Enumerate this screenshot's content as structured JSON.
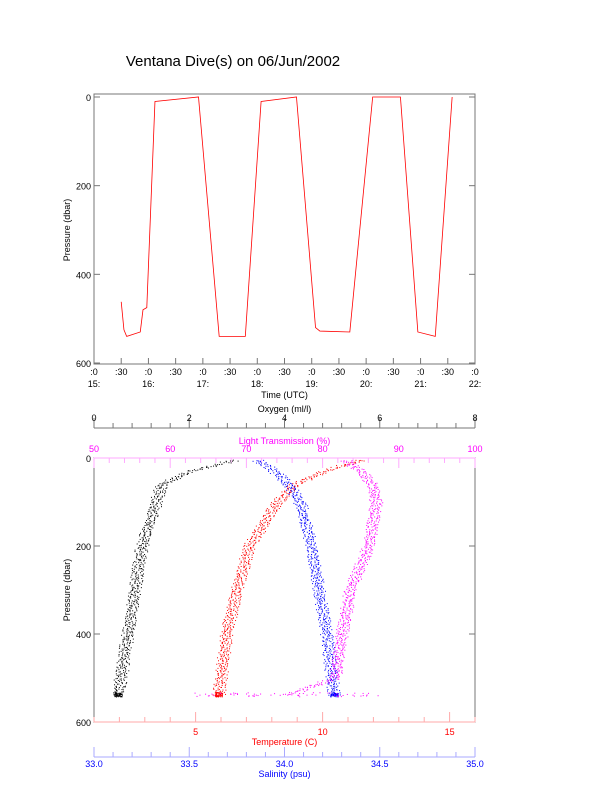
{
  "title": "Ventana Dive(s) on 06/Jun/2002",
  "colors": {
    "oxygen": "#000000",
    "temperature": "#ff0000",
    "salinity": "#0000ff",
    "light": "#ff00ff",
    "trace": "#ff0000",
    "axis": "#000000"
  },
  "chart_data": [
    {
      "type": "line",
      "name": "pressure-vs-time",
      "xlabel": "Time (UTC)",
      "ylabel": "Pressure (dbar)",
      "xlim": [
        15,
        22
      ],
      "ylim": [
        0,
        600
      ],
      "y_inverted": true,
      "x_tick_labels_top": [
        ":0",
        ":30",
        ":0",
        ":30",
        ":0",
        ":30",
        ":0",
        ":30",
        ":0",
        ":30",
        ":0",
        ":30",
        ":0",
        ":30",
        ":0"
      ],
      "x_tick_labels_bottom": [
        "15:",
        "",
        "16:",
        "",
        "17:",
        "",
        "18:",
        "",
        "19:",
        "",
        "20:",
        "",
        "21:",
        "",
        "22:"
      ],
      "y_ticks": [
        0,
        200,
        400,
        600
      ],
      "series": [
        {
          "name": "Pressure",
          "x": [
            15.5,
            15.55,
            15.6,
            15.85,
            15.9,
            15.97,
            16.12,
            16.92,
            17.3,
            17.78,
            18.07,
            18.72,
            19.07,
            19.15,
            19.7,
            20.12,
            20.63,
            20.95,
            21.27,
            21.58
          ],
          "y": [
            462,
            525,
            540,
            530,
            480,
            475,
            10,
            0,
            540,
            540,
            10,
            0,
            520,
            528,
            530,
            0,
            0,
            530,
            540,
            0
          ]
        }
      ]
    },
    {
      "type": "scatter",
      "name": "profiles",
      "ylabel": "Pressure (dbar)",
      "ylim": [
        0,
        600
      ],
      "y_inverted": true,
      "y_ticks": [
        0,
        200,
        400,
        600
      ],
      "axes": {
        "oxygen": {
          "label": "Oxygen (ml/l)",
          "range": [
            0,
            8
          ],
          "ticks": [
            0,
            2,
            4,
            6,
            8
          ]
        },
        "light": {
          "label": "Light Transmission (%)",
          "range": [
            50,
            100
          ],
          "ticks": [
            50,
            60,
            70,
            80,
            90,
            100
          ]
        },
        "temperature": {
          "label": "Temperature (C)",
          "range": [
            1,
            16
          ],
          "ticks": [
            5,
            10,
            15
          ]
        },
        "salinity": {
          "label": "Salinity (psu)",
          "range": [
            33.0,
            35.0
          ],
          "ticks": [
            "33.0",
            "33.5",
            "34.0",
            "34.5",
            "35.0"
          ]
        }
      },
      "series": [
        {
          "name": "Oxygen",
          "axis": "oxygen",
          "p": [
            5,
            30,
            60,
            100,
            200,
            300,
            400,
            540
          ],
          "v": [
            2.9,
            2.0,
            1.4,
            1.3,
            1.0,
            0.85,
            0.7,
            0.5
          ]
        },
        {
          "name": "Temperature",
          "axis": "temperature",
          "p": [
            5,
            30,
            60,
            100,
            200,
            300,
            400,
            540
          ],
          "v": [
            11.5,
            10.0,
            8.9,
            8.2,
            7.1,
            6.6,
            6.2,
            5.9
          ]
        },
        {
          "name": "Salinity",
          "axis": "salinity",
          "p": [
            5,
            30,
            60,
            100,
            200,
            300,
            400,
            540
          ],
          "v": [
            33.86,
            33.95,
            34.02,
            34.08,
            34.14,
            34.18,
            34.22,
            34.26
          ]
        },
        {
          "name": "Light Transmission",
          "axis": "light",
          "p": [
            5,
            30,
            60,
            100,
            200,
            300,
            400,
            500,
            540
          ],
          "v": [
            83,
            85,
            86.5,
            87,
            86,
            83.6,
            82.5,
            81.6,
            75
          ]
        }
      ]
    }
  ]
}
